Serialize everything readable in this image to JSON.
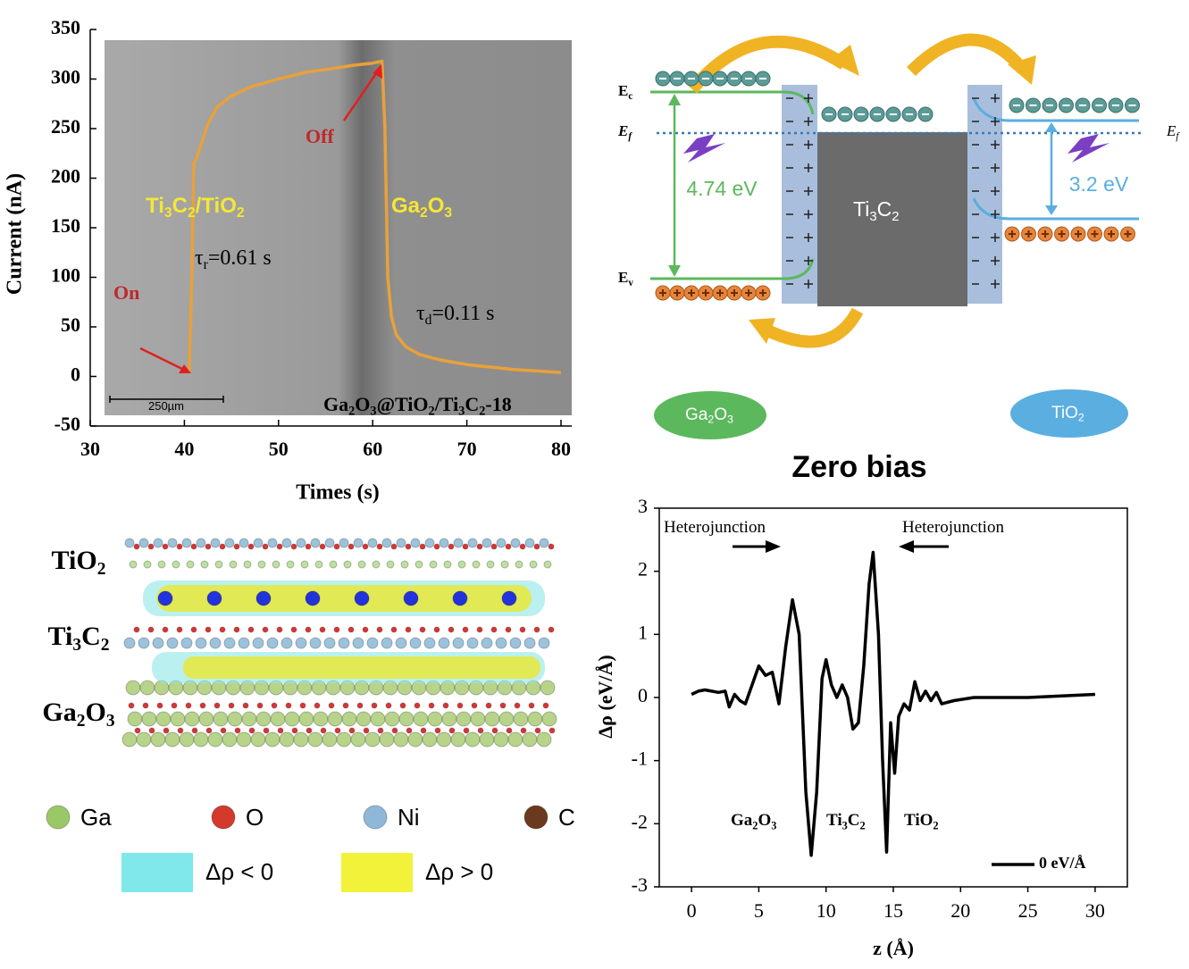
{
  "chart_data": [
    {
      "type": "line",
      "x": [
        40.5,
        40.8,
        41.0,
        41.3,
        41.8,
        42.5,
        43.5,
        45,
        47,
        50,
        53,
        56,
        58,
        60,
        61,
        61.3,
        61.6,
        62,
        62.5,
        63.5,
        65,
        67,
        70,
        75,
        80
      ],
      "values": [
        3,
        100,
        215,
        220,
        235,
        255,
        272,
        283,
        292,
        300,
        307,
        311,
        314,
        316,
        318,
        250,
        100,
        60,
        42,
        30,
        22,
        17,
        12,
        7,
        4
      ],
      "color": "#e8a13a",
      "xlim": [
        30,
        80
      ],
      "ylim": [
        -50,
        350
      ],
      "xticks": [
        30,
        40,
        50,
        60,
        70,
        80
      ],
      "yticks": [
        -50,
        0,
        50,
        100,
        150,
        200,
        250,
        300,
        350
      ],
      "x_label": "Times (s)",
      "y_label": "Current (nA)",
      "annotations": {
        "on": [
          "On"
        ],
        "off": [
          "Off"
        ],
        "left_material": [
          "Ti",
          "3",
          "C",
          "2",
          "/TiO",
          "2"
        ],
        "right_material": [
          "Ga",
          "2",
          "O",
          "3"
        ],
        "rise_time": [
          "τ",
          "r",
          "=0.61 s"
        ],
        "decay_time": [
          "τ",
          "d",
          "=0.11 s"
        ],
        "sample": [
          "Ga",
          "2",
          "O",
          "3",
          "@TiO",
          "2",
          "/Ti",
          "3",
          "C",
          "2",
          "-18"
        ],
        "scale_bar": [
          "250µm"
        ]
      }
    },
    {
      "type": "line",
      "title": "Zero bias",
      "x": [
        0,
        0.5,
        1,
        1.5,
        2,
        2.5,
        2.8,
        3.2,
        3.6,
        4,
        4.5,
        5,
        5.5,
        6,
        6.5,
        7,
        7.5,
        8,
        8.5,
        8.9,
        9.3,
        9.7,
        10,
        10.4,
        10.8,
        11.2,
        11.6,
        12,
        12.4,
        12.8,
        13.2,
        13.5,
        13.9,
        14.2,
        14.5,
        14.8,
        15.1,
        15.4,
        15.8,
        16.2,
        16.6,
        17,
        17.4,
        17.8,
        18.2,
        18.6,
        19.5,
        21,
        25,
        30
      ],
      "series": [
        {
          "name": "0 eV/Å",
          "color": "#000000",
          "values": [
            0.05,
            0.1,
            0.12,
            0.1,
            0.08,
            0.1,
            -0.15,
            0.05,
            -0.05,
            -0.1,
            0.2,
            0.5,
            0.35,
            0.4,
            -0.1,
            0.8,
            1.55,
            1.0,
            -1.5,
            -2.5,
            -1.5,
            0.3,
            0.6,
            0.2,
            0.0,
            0.2,
            0,
            -0.5,
            -0.4,
            0.5,
            1.8,
            2.3,
            1.0,
            -1.0,
            -2.45,
            -0.4,
            -1.2,
            -0.3,
            -0.1,
            -0.2,
            0.25,
            -0.05,
            0.1,
            -0.05,
            0.08,
            -0.1,
            -0.05,
            0,
            0,
            0.05
          ]
        }
      ],
      "xlim": [
        -2.4,
        32.4
      ],
      "ylim": [
        -3,
        3
      ],
      "xticks": [
        0,
        5,
        10,
        15,
        20,
        25,
        30
      ],
      "yticks": [
        -3,
        -2,
        -1,
        0,
        1,
        2,
        3
      ],
      "x_label": "z (Å)",
      "y_label": "Δρ (eV/Å)",
      "legend": "lower right",
      "annotations": {
        "heterojunction_left": [
          "Heterojunction"
        ],
        "heterojunction_right": [
          "Heterojunction"
        ],
        "ga2o3": [
          "Ga",
          "2",
          "O",
          "3"
        ],
        "ti3c2": [
          "Ti",
          "3",
          "C",
          "2"
        ],
        "tio2": [
          "TiO",
          "2"
        ]
      }
    }
  ],
  "band_diagram": {
    "levels": {
      "ec": [
        "E",
        "c"
      ],
      "ef_left": [
        "E",
        "f"
      ],
      "ev": [
        "E",
        "v"
      ],
      "ef_right": [
        "E",
        "f"
      ]
    },
    "gaps": {
      "left": "4.74 eV",
      "right": "3.2 eV"
    },
    "center": [
      "Ti",
      "3",
      "C",
      "2"
    ],
    "left_material": [
      "Ga",
      "2",
      "O",
      "3"
    ],
    "right_material": [
      "TiO",
      "2"
    ]
  },
  "structure": {
    "layers": [
      [
        "TiO",
        "2"
      ],
      [
        "Ti",
        "3",
        "C",
        "2"
      ],
      [
        "Ga",
        "2",
        "O",
        "3"
      ]
    ],
    "atoms": [
      "Ga",
      "O",
      "Ni",
      "C"
    ],
    "density": [
      "Δρ < 0",
      "Δρ > 0"
    ]
  }
}
